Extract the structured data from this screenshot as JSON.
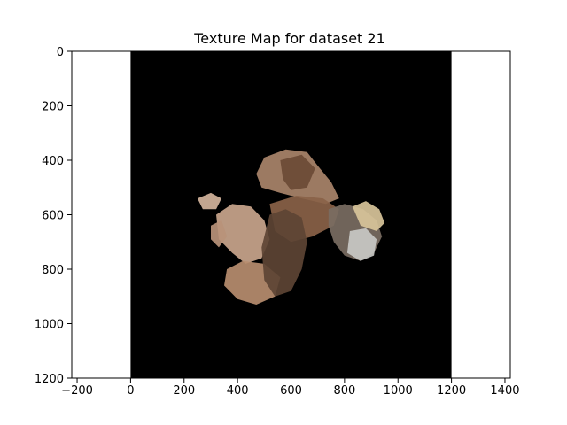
{
  "chart_data": {
    "type": "heatmap",
    "title": "Texture Map for dataset 21",
    "xlabel": "",
    "ylabel": "",
    "xlim": [
      -220,
      1420
    ],
    "ylim": [
      1200,
      0
    ],
    "y_inverted": true,
    "image_extent": {
      "x": [
        0,
        1200
      ],
      "y": [
        0,
        1200
      ]
    },
    "image_background": "#000000",
    "xticks": [
      -200,
      0,
      200,
      400,
      600,
      800,
      1000,
      1200,
      1400
    ],
    "xtick_labels": [
      "−200",
      "0",
      "200",
      "400",
      "600",
      "800",
      "1000",
      "1200",
      "1400"
    ],
    "yticks": [
      0,
      200,
      400,
      600,
      800,
      1000,
      1200
    ],
    "ytick_labels": [
      "0",
      "200",
      "400",
      "600",
      "800",
      "1000",
      "1200"
    ],
    "grid": false,
    "texture_regions": [
      {
        "desc": "upper fold",
        "points": [
          [
            470,
            450
          ],
          [
            500,
            390
          ],
          [
            580,
            360
          ],
          [
            660,
            370
          ],
          [
            700,
            420
          ],
          [
            750,
            480
          ],
          [
            780,
            540
          ],
          [
            730,
            560
          ],
          [
            640,
            540
          ],
          [
            560,
            520
          ],
          [
            490,
            500
          ]
        ],
        "color": "#a9846a"
      },
      {
        "desc": "upper fold shading",
        "points": [
          [
            560,
            400
          ],
          [
            640,
            380
          ],
          [
            690,
            430
          ],
          [
            660,
            500
          ],
          [
            600,
            510
          ],
          [
            570,
            470
          ]
        ],
        "color": "#6b4a35"
      },
      {
        "desc": "central strip",
        "points": [
          [
            520,
            560
          ],
          [
            620,
            530
          ],
          [
            720,
            540
          ],
          [
            780,
            580
          ],
          [
            760,
            640
          ],
          [
            680,
            680
          ],
          [
            600,
            700
          ],
          [
            540,
            660
          ]
        ],
        "color": "#8a6248"
      },
      {
        "desc": "left lobe",
        "points": [
          [
            320,
            600
          ],
          [
            380,
            560
          ],
          [
            450,
            570
          ],
          [
            500,
            620
          ],
          [
            520,
            690
          ],
          [
            490,
            760
          ],
          [
            430,
            780
          ],
          [
            380,
            740
          ],
          [
            330,
            690
          ]
        ],
        "color": "#c9a58c"
      },
      {
        "desc": "lower-left lobe",
        "points": [
          [
            360,
            800
          ],
          [
            420,
            770
          ],
          [
            500,
            780
          ],
          [
            560,
            830
          ],
          [
            540,
            900
          ],
          [
            470,
            930
          ],
          [
            400,
            910
          ],
          [
            350,
            860
          ]
        ],
        "color": "#b78d6f"
      },
      {
        "desc": "central column",
        "points": [
          [
            520,
            600
          ],
          [
            580,
            580
          ],
          [
            640,
            610
          ],
          [
            660,
            700
          ],
          [
            640,
            800
          ],
          [
            600,
            880
          ],
          [
            540,
            900
          ],
          [
            500,
            840
          ],
          [
            490,
            720
          ]
        ],
        "color": "#5d4434"
      },
      {
        "desc": "right patch",
        "points": [
          [
            740,
            580
          ],
          [
            800,
            560
          ],
          [
            870,
            580
          ],
          [
            920,
            620
          ],
          [
            940,
            680
          ],
          [
            910,
            740
          ],
          [
            860,
            770
          ],
          [
            800,
            750
          ],
          [
            760,
            700
          ],
          [
            740,
            640
          ]
        ],
        "color": "#7a6d62"
      },
      {
        "desc": "right gray patch",
        "points": [
          [
            820,
            660
          ],
          [
            880,
            650
          ],
          [
            920,
            690
          ],
          [
            910,
            750
          ],
          [
            860,
            770
          ],
          [
            810,
            740
          ]
        ],
        "color": "#c8c8c4"
      },
      {
        "desc": "right yellow patch",
        "points": [
          [
            830,
            570
          ],
          [
            880,
            550
          ],
          [
            930,
            580
          ],
          [
            950,
            630
          ],
          [
            920,
            660
          ],
          [
            860,
            640
          ]
        ],
        "color": "#d8c49a"
      },
      {
        "desc": "far-left speckle",
        "points": [
          [
            250,
            540
          ],
          [
            300,
            520
          ],
          [
            340,
            540
          ],
          [
            320,
            580
          ],
          [
            270,
            580
          ]
        ],
        "color": "#d4b49c"
      },
      {
        "desc": "left strip",
        "points": [
          [
            300,
            640
          ],
          [
            340,
            620
          ],
          [
            360,
            680
          ],
          [
            330,
            720
          ],
          [
            300,
            690
          ]
        ],
        "color": "#b8927a"
      }
    ]
  }
}
